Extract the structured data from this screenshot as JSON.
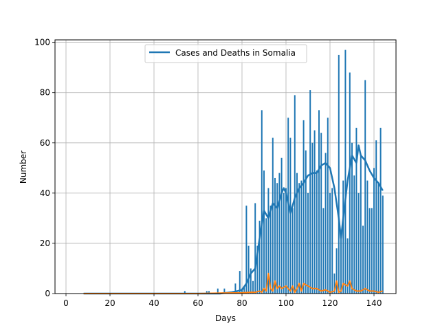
{
  "chart_data": {
    "type": "bar",
    "title": "",
    "xlabel": "Days",
    "ylabel": "Number",
    "xlim": [
      -5,
      150
    ],
    "ylim": [
      0,
      101
    ],
    "xticks": [
      0,
      20,
      40,
      60,
      80,
      100,
      120,
      140
    ],
    "yticks": [
      0,
      20,
      40,
      60,
      80,
      100
    ],
    "grid": true,
    "legend": {
      "position": "top-center",
      "entries": [
        "Cases and Deaths in Somalia"
      ]
    },
    "series": [
      {
        "name": "Cases and Deaths in Somalia",
        "type": "bar",
        "color": "#1f77b4",
        "x": [
          54,
          64,
          65,
          69,
          72,
          77,
          79,
          80,
          81,
          82,
          83,
          84,
          85,
          86,
          87,
          88,
          89,
          90,
          91,
          92,
          93,
          94,
          95,
          96,
          97,
          98,
          99,
          100,
          101,
          102,
          103,
          104,
          105,
          106,
          107,
          108,
          109,
          110,
          111,
          112,
          113,
          114,
          115,
          116,
          117,
          118,
          119,
          120,
          121,
          122,
          123,
          124,
          125,
          126,
          127,
          128,
          129,
          130,
          131,
          132,
          133,
          134,
          135,
          136,
          137,
          138,
          139,
          140,
          141,
          142,
          143,
          144
        ],
        "values": [
          1,
          1,
          1,
          2,
          2,
          4,
          9,
          2,
          3,
          35,
          19,
          10,
          5,
          36,
          19,
          29,
          73,
          49,
          30,
          42,
          35,
          62,
          46,
          44,
          48,
          54,
          40,
          42,
          70,
          62,
          34,
          79,
          48,
          44,
          45,
          69,
          57,
          40,
          81,
          60,
          65,
          49,
          73,
          64,
          34,
          56,
          70,
          40,
          42,
          8,
          18,
          95,
          22,
          45,
          97,
          22,
          88,
          60,
          47,
          66,
          40,
          55,
          27,
          85,
          45,
          34,
          34,
          50,
          61,
          44,
          66,
          39
        ]
      },
      {
        "name": "",
        "type": "line",
        "color": "#1f77b4",
        "x": [
          8,
          70,
          75,
          78,
          80,
          82,
          84,
          86,
          88,
          90,
          92,
          94,
          96,
          98,
          99,
          100,
          102,
          104,
          106,
          108,
          110,
          112,
          114,
          116,
          118,
          120,
          122,
          124,
          125,
          126,
          128,
          130,
          132,
          133,
          134,
          136,
          138,
          140,
          142,
          144
        ],
        "values": [
          0,
          0,
          0.5,
          1,
          1.5,
          4,
          8,
          10,
          22,
          33,
          30,
          36,
          34,
          40,
          42,
          40,
          32,
          38,
          42,
          44,
          47,
          48,
          48,
          51,
          52,
          50,
          42,
          30,
          22,
          30,
          45,
          55,
          52,
          59,
          55,
          53,
          49,
          46,
          44,
          41
        ]
      },
      {
        "name": "",
        "type": "line",
        "color": "#ff7f0e",
        "x": [
          8,
          60,
          70,
          80,
          84,
          86,
          88,
          89,
          90,
          91,
          92,
          93,
          94,
          95,
          96,
          97,
          98,
          100,
          102,
          103,
          104,
          105,
          106,
          107,
          108,
          110,
          112,
          114,
          116,
          118,
          120,
          122,
          123,
          124,
          125,
          126,
          128,
          129,
          130,
          132,
          134,
          136,
          138,
          140,
          142,
          144
        ],
        "values": [
          0,
          0,
          0.2,
          0.3,
          0.5,
          0.5,
          1,
          0.5,
          2,
          1,
          8,
          2,
          1,
          5,
          2,
          3,
          2,
          3,
          1,
          3,
          0.5,
          2,
          4,
          1,
          4,
          3,
          2,
          2,
          1,
          1.5,
          0.5,
          1,
          5,
          0.5,
          1,
          4,
          3,
          5,
          2,
          1,
          1,
          2,
          1,
          1,
          0.5,
          1
        ]
      }
    ]
  }
}
